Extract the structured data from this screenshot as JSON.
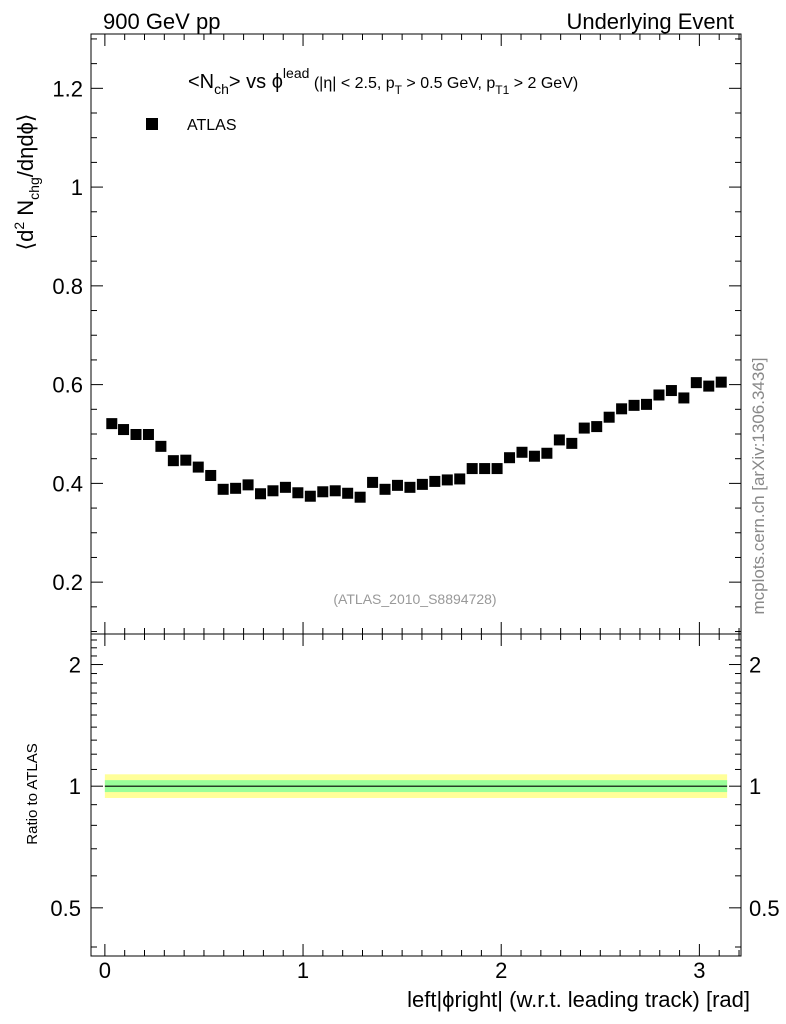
{
  "header": {
    "left": "900 GeV pp",
    "right": "Underlying Event"
  },
  "side_label": "mcplots.cern.ch [arXiv:1306.3436]",
  "analysis_id": "(ATLAS_2010_S8894728)",
  "plot_title": {
    "main": "<N",
    "sub_ch": "ch",
    "vs": "> vs ϕ",
    "sup_lead": "lead",
    "cuts_a": " (|η| < 2.5, p",
    "sub_T": "T",
    "cuts_b": " > 0.5 GeV, p",
    "sub_T1": "T1",
    "cuts_c": " > 2 GeV)"
  },
  "ylabel_top": {
    "a": "⟨d",
    "sup2": "2",
    "b": " N",
    "sub_chg": "chg",
    "c": "/dηdϕ⟩"
  },
  "ylabel_bottom": "Ratio to ATLAS",
  "xlabel": "left|ϕright| (w.r.t. leading track) [rad]",
  "legend": [
    {
      "name": "ATLAS",
      "marker": "square",
      "color": "#000000"
    }
  ],
  "chart_data": [
    {
      "type": "scatter",
      "panel": "main",
      "xlim": [
        -0.07,
        3.21
      ],
      "ylim": [
        0.095,
        1.31
      ],
      "yticks": [
        0.2,
        0.4,
        0.6,
        0.8,
        1,
        1.2
      ],
      "ytick_labels": [
        "0.2",
        "0.4",
        "0.6",
        "0.8",
        "1",
        "1.2"
      ],
      "series": [
        {
          "name": "ATLAS",
          "x": [
            0.0349,
            0.0942,
            0.1571,
            0.2199,
            0.2827,
            0.3456,
            0.4084,
            0.4712,
            0.5341,
            0.5969,
            0.6597,
            0.7226,
            0.7854,
            0.8482,
            0.9111,
            0.9739,
            1.0367,
            1.0996,
            1.1624,
            1.2252,
            1.2881,
            1.3509,
            1.4137,
            1.4765,
            1.5394,
            1.6022,
            1.665,
            1.7279,
            1.7907,
            1.8535,
            1.9164,
            1.9792,
            2.042,
            2.1049,
            2.1677,
            2.2305,
            2.2934,
            2.3562,
            2.419,
            2.4819,
            2.5447,
            2.6075,
            2.6704,
            2.7332,
            2.796,
            2.8588,
            2.9217,
            2.9845,
            3.0473,
            3.1102
          ],
          "values": [
            0.521,
            0.509,
            0.499,
            0.499,
            0.475,
            0.446,
            0.447,
            0.433,
            0.416,
            0.388,
            0.39,
            0.397,
            0.379,
            0.385,
            0.392,
            0.381,
            0.374,
            0.383,
            0.385,
            0.38,
            0.372,
            0.402,
            0.388,
            0.396,
            0.392,
            0.398,
            0.404,
            0.407,
            0.409,
            0.43,
            0.43,
            0.43,
            0.452,
            0.463,
            0.455,
            0.461,
            0.488,
            0.481,
            0.512,
            0.515,
            0.534,
            0.551,
            0.558,
            0.56,
            0.579,
            0.588,
            0.573,
            0.604,
            0.597,
            0.605
          ]
        }
      ]
    },
    {
      "type": "line",
      "panel": "ratio",
      "ylim": [
        0.38,
        2.38
      ],
      "yscale": "log",
      "yticks": [
        0.5,
        1,
        2
      ],
      "ytick_labels": [
        "0.5",
        "1",
        "2"
      ],
      "xticks": [
        0,
        1,
        2,
        3
      ],
      "xtick_labels": [
        "0",
        "1",
        "2",
        "3"
      ],
      "series": [
        {
          "name": "ATLAS",
          "x": [
            0,
            3.14
          ],
          "values": [
            1,
            1
          ]
        }
      ],
      "bands": [
        {
          "color": "#ffff99",
          "lower": 0.935,
          "upper": 1.07
        },
        {
          "color": "#99ff99",
          "lower": 0.967,
          "upper": 1.035
        }
      ]
    }
  ]
}
